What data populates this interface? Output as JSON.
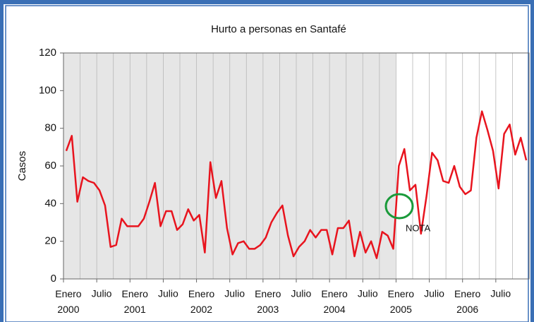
{
  "chart_data": {
    "type": "line",
    "title": "Hurto a personas en Santafé",
    "ylabel": "Casos",
    "categories": [
      "Enero 2000",
      null,
      null,
      null,
      null,
      null,
      "Julio",
      null,
      null,
      null,
      null,
      null,
      "Enero 2001",
      null,
      null,
      null,
      null,
      null,
      "Julio",
      null,
      null,
      null,
      null,
      null,
      "Enero 2002",
      null,
      null,
      null,
      null,
      null,
      "Julio",
      null,
      null,
      null,
      null,
      null,
      "Enero 2003",
      null,
      null,
      null,
      null,
      null,
      "Julio",
      null,
      null,
      null,
      null,
      null,
      "Enero 2004",
      null,
      null,
      null,
      null,
      null,
      "Julio",
      null,
      null,
      null,
      null,
      null,
      "Enero 2005",
      null,
      null,
      null,
      null,
      null,
      "Julio",
      null,
      null,
      null,
      null,
      null,
      "Enero 2006",
      null,
      null,
      null,
      null,
      null,
      "Julio",
      null,
      null,
      null,
      null,
      null
    ],
    "series": [
      {
        "name": "Casos",
        "color": "#e8141e",
        "values": [
          68,
          76,
          41,
          54,
          52,
          51,
          47,
          39,
          17,
          18,
          32,
          28,
          28,
          28,
          32,
          41,
          51,
          28,
          36,
          36,
          26,
          29,
          37,
          31,
          34,
          14,
          62,
          43,
          52,
          27,
          13,
          19,
          20,
          16,
          16,
          18,
          22,
          30,
          35,
          39,
          23,
          12,
          17,
          20,
          26,
          22,
          26,
          26,
          13,
          27,
          27,
          31,
          12,
          25,
          14,
          20,
          11,
          25,
          23,
          16,
          60,
          69,
          47,
          50,
          24,
          44,
          67,
          63,
          52,
          51,
          60,
          49,
          45,
          47,
          75,
          89,
          79,
          68,
          48,
          77,
          82,
          66,
          75,
          63
        ]
      }
    ],
    "ylim": [
      0,
      120
    ],
    "yticks": [
      0,
      20,
      40,
      60,
      80,
      100,
      120
    ],
    "annotations": [
      "NOTA"
    ]
  }
}
